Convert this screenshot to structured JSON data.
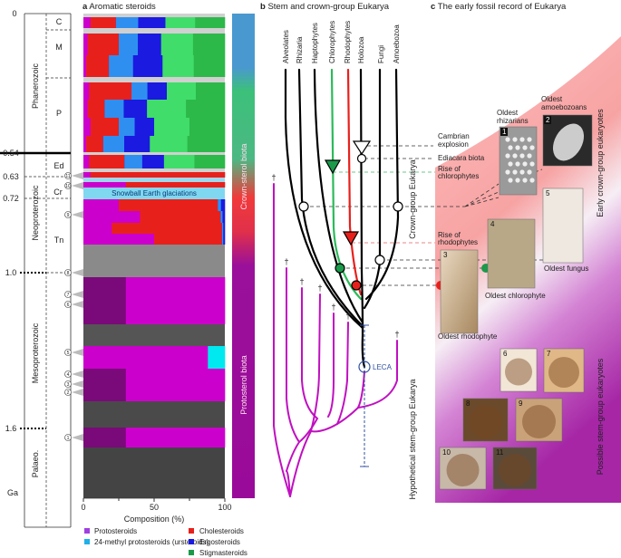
{
  "panel_a": {
    "letter": "a",
    "title": "Aromatic steroids",
    "ages": [
      "0",
      "0.54",
      "0.63",
      "0.72",
      "1.0",
      "1.6",
      "Ga"
    ],
    "eras": [
      "Phanerozoic",
      "Neoproterozoic",
      "Mesoproterozoic",
      "Palaeo."
    ],
    "periods": [
      "C",
      "M",
      "P",
      "Ed",
      "Cr",
      "Tn"
    ],
    "sample_markers": [
      "11",
      "10",
      "9",
      "8",
      "7",
      "6",
      "5",
      "4",
      "3",
      "2",
      "1"
    ],
    "glaciation_label": "Snowball Earth glaciations",
    "colorbar_labels": [
      "Crown-sterol biota",
      "Protosterol biota"
    ],
    "colors": {
      "protosteroids": "#cc00cc",
      "protosteroids_dark": "#7a0a7a",
      "urst": "#00e8f0",
      "cholesteroids": "#e8201c",
      "ergosteroids": "#1a1ae0",
      "ergosteroids_light": "#2f8ff0",
      "stigmasteroids": "#2db84a",
      "stigmasteroids_light": "#40dd6a"
    }
  },
  "chart_data": {
    "type": "bar",
    "orientation": "horizontal-stacked",
    "xlabel": "Composition (%)",
    "xticks": [
      "0",
      "50",
      "100"
    ],
    "xlim": [
      0,
      100
    ],
    "legend": [
      "Protosteroids",
      "24-methyl protosteroids (ursteroids)",
      "Cholesteroids",
      "Ergosteroids",
      "Stigmasteroids"
    ],
    "legend_placement": "bottom",
    "series_order": [
      "protosteroids",
      "ursteroids",
      "cholesteroids",
      "ergosteroids",
      "stigmasteroids"
    ],
    "rows": [
      {
        "interval": "C",
        "values": [
          5,
          0,
          18,
          35,
          42
        ]
      },
      {
        "interval": "M",
        "values": [
          3,
          0,
          22,
          30,
          45
        ]
      },
      {
        "interval": "M",
        "values": [
          2,
          0,
          16,
          38,
          44
        ]
      },
      {
        "interval": "P",
        "values": [
          4,
          0,
          30,
          25,
          41
        ]
      },
      {
        "interval": "P",
        "values": [
          3,
          0,
          12,
          30,
          55
        ]
      },
      {
        "interval": "P",
        "values": [
          5,
          0,
          20,
          25,
          50
        ]
      },
      {
        "interval": "P",
        "values": [
          2,
          0,
          12,
          33,
          53
        ]
      },
      {
        "interval": "Ed",
        "values": [
          4,
          0,
          25,
          28,
          43
        ]
      },
      {
        "interval": "Cr-post",
        "values": [
          5,
          0,
          95,
          0,
          0
        ]
      },
      {
        "interval": "Cr-pre",
        "values": [
          30,
          0,
          70,
          0,
          0
        ]
      },
      {
        "interval": "Tn",
        "values": [
          25,
          0,
          70,
          5,
          0
        ]
      },
      {
        "interval": "Tn",
        "values": [
          40,
          0,
          57,
          3,
          0
        ]
      },
      {
        "interval": "Tn",
        "values": [
          20,
          0,
          78,
          2,
          0
        ]
      },
      {
        "interval": "Tn",
        "values": [
          50,
          0,
          48,
          2,
          0
        ]
      },
      {
        "interval": "Meso-upper",
        "values": [
          100,
          0,
          0,
          0,
          0
        ]
      },
      {
        "interval": "Meso-lower",
        "values": [
          88,
          12,
          0,
          0,
          0
        ]
      },
      {
        "interval": "Meso-lower",
        "values": [
          100,
          0,
          0,
          0,
          0
        ]
      },
      {
        "interval": "Palaeo",
        "values": [
          100,
          0,
          0,
          0,
          0
        ]
      }
    ]
  },
  "panel_b": {
    "letter": "b",
    "title": "Stem and crown-group Eukarya",
    "taxa": [
      "Alveolates",
      "Rhizaria",
      "Haptophytes",
      "Chlorophytes",
      "Rhodophytes",
      "Holozoa",
      "Fungi",
      "Amoebozoa"
    ],
    "crown_label": "Crown-group Eukarya",
    "stem_label": "Hypothetical stem-group Eukarya",
    "leca_label": "LECA",
    "dagger": "†"
  },
  "panel_c": {
    "letter": "c",
    "title": "The early fossil record of Eukarya",
    "events": [
      "Cambrian",
      "explosion",
      "Ediacara biota",
      "Rise of",
      "chlorophytes",
      "Rise of",
      "rhodophytes"
    ],
    "fossil_labels": {
      "rhizarians": [
        "Oldest",
        "rhizarians"
      ],
      "amoebozoans": [
        "Oldest",
        "amoebozoans"
      ],
      "fungus": "Oldest fungus",
      "chlorophyte": "Oldest chlorophyte",
      "rhodophyte": "Oldest rhodophyte"
    },
    "image_numbers": [
      "1",
      "2",
      "3",
      "4",
      "5",
      "6",
      "7",
      "8",
      "9",
      "10",
      "11"
    ],
    "side_labels": [
      "Early crown-group eukaryotes",
      "Possible stem-group eukaryotes"
    ]
  }
}
